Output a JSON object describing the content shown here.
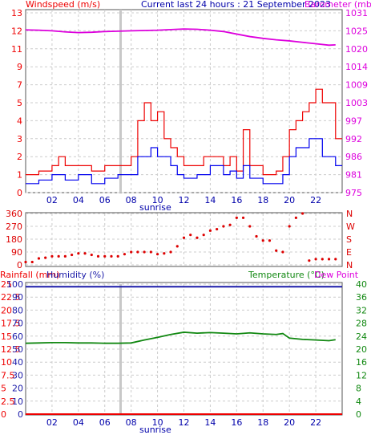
{
  "header": {
    "left_label": "Windspeed (m/s)",
    "center_label": "Current last 24 hours : 21 September 2023",
    "right_label": "Barometer (mb)"
  },
  "colors": {
    "wind_avg": "#0000ee",
    "wind_gust": "#ee0000",
    "barometer": "#dd00dd",
    "winddir": "#dd0000",
    "humidity": "#1a1aa8",
    "rain": "#ee0000",
    "temperature": "#118811",
    "dewpoint": "#dd00dd",
    "grid": "#cccccc",
    "sunrise_band": "#c8c8c8"
  },
  "chart_data": [
    {
      "type": "line",
      "panel": "wind-barometer",
      "title": "Current last 24 hours : 21 September 2023",
      "x_tick_labels": [
        "02",
        "04",
        "06",
        "08",
        "10",
        "12",
        "14",
        "16",
        "18",
        "20",
        "22"
      ],
      "x_annotation": "sunrise",
      "y_left": {
        "label": "Windspeed (m/s)",
        "ticks": [
          "0",
          "1",
          "2",
          "3",
          "4",
          "5",
          "7",
          "9",
          "11",
          "12",
          "13"
        ]
      },
      "y_right": {
        "label": "Barometer (mb)",
        "ticks": [
          "975",
          "981",
          "986",
          "992",
          "997",
          "1003",
          "1009",
          "1014",
          "1020",
          "1025",
          "1031"
        ]
      },
      "x_range_hours": [
        0,
        24
      ],
      "series": [
        {
          "name": "Windspeed",
          "x": [
            0,
            1,
            2,
            3,
            4,
            5,
            6,
            7,
            8,
            8.5,
            9,
            9.5,
            10,
            10.5,
            11,
            11.5,
            12,
            13,
            14,
            15,
            15.5,
            16,
            16.5,
            17,
            17.5,
            18,
            19,
            19.5,
            20,
            20.5,
            21,
            21.5,
            22,
            22.5,
            23,
            23.5
          ],
          "values": [
            0.5,
            0.7,
            1,
            0.7,
            1,
            0.5,
            0.8,
            1,
            1,
            2,
            2,
            2.5,
            2,
            2,
            1.5,
            1,
            0.8,
            1,
            1.5,
            1,
            1.2,
            0.8,
            1.5,
            0.8,
            0.8,
            0.5,
            0.5,
            1,
            2,
            2.5,
            2.5,
            3,
            3,
            2,
            2,
            1.5
          ]
        },
        {
          "name": "Gust",
          "x": [
            0,
            1,
            2,
            2.5,
            3,
            4,
            5,
            6,
            7,
            8,
            8.5,
            9,
            9.5,
            10,
            10.5,
            11,
            11.5,
            12,
            13,
            13.5,
            14,
            15,
            15.5,
            16,
            16.5,
            17,
            17.5,
            18,
            19,
            19.5,
            20,
            20.5,
            21,
            21.5,
            22,
            22.5,
            23,
            23.5
          ],
          "values": [
            1,
            1.2,
            1.5,
            2,
            1.5,
            1.5,
            1.2,
            1.5,
            1.5,
            2,
            4,
            5,
            4,
            4.5,
            3,
            2.5,
            2,
            1.5,
            1.5,
            2,
            2,
            1.5,
            2,
            1.2,
            3.5,
            1.5,
            1.5,
            1,
            1.2,
            2,
            3.5,
            4,
            4.5,
            5,
            6.5,
            5,
            5,
            3
          ]
        },
        {
          "name": "Barometer",
          "x": [
            0,
            1,
            2,
            3,
            4,
            5,
            6,
            7,
            8,
            9,
            10,
            11,
            12,
            13,
            14,
            15,
            16,
            17,
            18,
            19,
            20,
            21,
            22,
            23,
            23.5
          ],
          "values": [
            1025.3,
            1025.2,
            1025.0,
            1024.7,
            1024.5,
            1024.6,
            1024.8,
            1024.9,
            1025.0,
            1025.1,
            1025.2,
            1025.4,
            1025.6,
            1025.5,
            1025.2,
            1024.8,
            1024.1,
            1023.4,
            1022.9,
            1022.5,
            1022.2,
            1021.8,
            1021.4,
            1021.0,
            1021.1
          ]
        }
      ]
    },
    {
      "type": "scatter",
      "panel": "wind-direction",
      "y_left_ticks": [
        "0",
        "90",
        "180",
        "270",
        "360"
      ],
      "y_right_ticks": [
        "N",
        "E",
        "S",
        "W",
        "N"
      ],
      "ylim": [
        0,
        360
      ],
      "series": [
        {
          "name": "Wind direction",
          "x": [
            0,
            0.5,
            1,
            1.5,
            2,
            2.5,
            3,
            3.5,
            4,
            4.5,
            5,
            5.5,
            6,
            6.5,
            7,
            7.5,
            8,
            8.5,
            9,
            9.5,
            10,
            10.5,
            11,
            11.5,
            12,
            12.5,
            13,
            13.5,
            14,
            14.5,
            15,
            15.5,
            16,
            16.5,
            17,
            17.5,
            18,
            18.5,
            19,
            19.5,
            20,
            20.5,
            21,
            21.5,
            22,
            22.5,
            23,
            23.5
          ],
          "values": [
            20,
            20,
            45,
            50,
            60,
            60,
            60,
            70,
            80,
            80,
            70,
            60,
            60,
            60,
            60,
            75,
            90,
            90,
            90,
            90,
            75,
            80,
            90,
            130,
            190,
            210,
            190,
            210,
            240,
            250,
            270,
            280,
            330,
            330,
            270,
            200,
            170,
            170,
            100,
            90,
            270,
            330,
            360,
            30,
            40,
            40,
            40,
            40
          ]
        }
      ]
    },
    {
      "type": "line",
      "panel": "humidity-temperature-rain",
      "header_left": "Rainfall (mm)",
      "header_left2": "Humidity (%)",
      "header_right": "Temperature (°C)",
      "header_right2": "Dew Point",
      "y_left_humidity_ticks": [
        "0",
        "10",
        "20",
        "30",
        "40",
        "50",
        "60",
        "70",
        "80",
        "90",
        "100"
      ],
      "y_left_rain_ticks": [
        "0",
        "2.5",
        "5",
        "7.5",
        "10",
        "12.5",
        "15",
        "17.5",
        "20",
        "22.5",
        "25"
      ],
      "y_right_ticks": [
        "0",
        "4",
        "8",
        "12",
        "16",
        "20",
        "24",
        "28",
        "32",
        "36",
        "40"
      ],
      "x_tick_labels": [
        "02",
        "04",
        "06",
        "08",
        "10",
        "12",
        "14",
        "16",
        "18",
        "20",
        "22"
      ],
      "x_annotation": "sunrise",
      "series": [
        {
          "name": "Humidity",
          "x": [
            0,
            24
          ],
          "values": [
            98,
            98
          ]
        },
        {
          "name": "Rainfall",
          "x": [
            0,
            24
          ],
          "values": [
            0,
            0
          ]
        },
        {
          "name": "Temperature",
          "x": [
            0,
            1,
            2,
            3,
            4,
            5,
            6,
            7,
            8,
            9,
            10,
            11,
            12,
            13,
            14,
            15,
            16,
            17,
            18,
            19,
            19.5,
            20,
            21,
            22,
            23,
            23.5
          ],
          "values": [
            21.8,
            21.9,
            22.0,
            22.0,
            21.9,
            21.9,
            21.8,
            21.8,
            21.9,
            22.8,
            23.6,
            24.5,
            25.2,
            24.9,
            25.1,
            24.9,
            24.7,
            25.0,
            24.7,
            24.5,
            24.8,
            23.4,
            23.0,
            22.8,
            22.6,
            22.9
          ]
        }
      ]
    }
  ]
}
